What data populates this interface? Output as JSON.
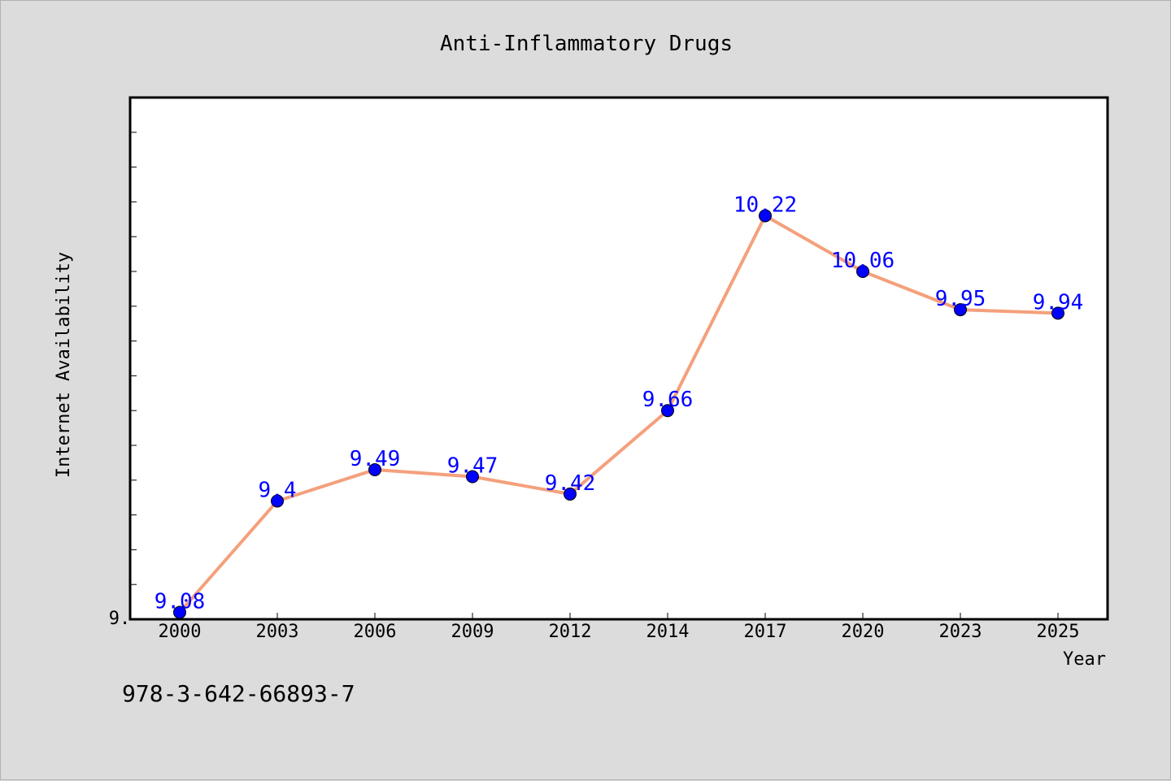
{
  "chart_data": {
    "type": "line",
    "title": "Anti-Inflammatory Drugs",
    "xlabel": "Year",
    "ylabel": "Internet Availability",
    "categories": [
      "2000",
      "2003",
      "2006",
      "2009",
      "2012",
      "2014",
      "2017",
      "2020",
      "2023",
      "2025"
    ],
    "values": [
      9.08,
      9.4,
      9.49,
      9.47,
      9.42,
      9.66,
      10.22,
      10.06,
      9.95,
      9.94
    ],
    "data_labels": [
      "9.08",
      "9.4",
      "9.49",
      "9.47",
      "9.42",
      "9.66",
      "10.22",
      "10.06",
      "9.95",
      "9.94"
    ],
    "ylim": [
      9.06,
      10.56
    ],
    "y_tick_label": "9.",
    "y_tick_label_value": 9.06,
    "y_minor_tick_step": 0.1,
    "grid": false,
    "legend": "none",
    "colors": {
      "line": "#f4a07c",
      "marker": "#0000ff",
      "data_label": "#0000ff",
      "plot_background": "#ffffff",
      "page_background": "#dcdcdc"
    }
  },
  "footer": {
    "isbn": "978-3-642-66893-7"
  }
}
